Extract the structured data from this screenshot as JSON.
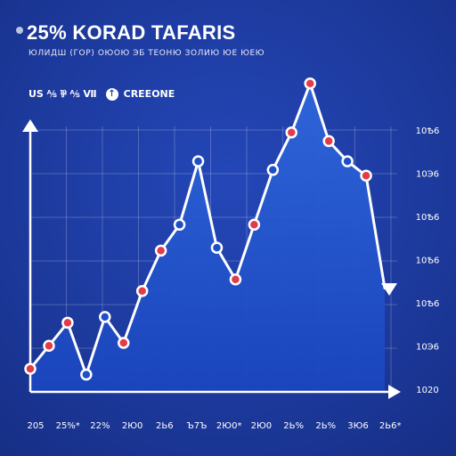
{
  "chart_data": {
    "type": "area",
    "title": "25% KORAD TAFARIS",
    "subtitle": "ЮЛИДШ (ГОР) ОЮОЮ ЭБ ТЕОНЮ ЗОЛИЮ ЮЕ ЮЕЮ",
    "legend": {
      "label_left": "US ⅍ ⅌ ⅍ Ⅶ",
      "label_right": "CREEONE",
      "icon": "up-arrow-icon",
      "placement": "top-left"
    },
    "x_tick_labels": [
      "205",
      "25%*",
      "22%",
      "2Ю0",
      "2Ь6",
      "Ъ7Ъ",
      "2Ю0*",
      "2Ю0",
      "2Ь%",
      "2Ь%",
      "3Ю6",
      "2Ь6*"
    ],
    "y_tick_labels": [
      "1020",
      "10Э6",
      "10Ѣ6",
      "10Ѣ6",
      "10Ѣ6",
      "10Э6",
      "10Ѣ6"
    ],
    "ylim": [
      0,
      100
    ],
    "grid": true,
    "series": [
      {
        "x": [
          0,
          1,
          2,
          3,
          4,
          5,
          6,
          7,
          8,
          9,
          10,
          11,
          12,
          13,
          14,
          15,
          16,
          17,
          18,
          19
        ],
        "values": [
          8,
          16,
          24,
          6,
          26,
          17,
          35,
          49,
          58,
          80,
          50,
          39,
          58,
          77,
          90,
          107,
          87,
          80,
          75,
          36
        ],
        "point_colors": [
          "red",
          "red",
          "red",
          "white",
          "white",
          "red",
          "red",
          "red",
          "white",
          "white",
          "white",
          "red",
          "red",
          "white",
          "red",
          "red",
          "red",
          "white",
          "red",
          "none"
        ]
      }
    ],
    "colors": {
      "area_top": "#2e63d6",
      "area_bottom": "#1d47bd",
      "line": "#ffffff",
      "red_point": "#e23c4a",
      "white_point": "#ffffff"
    }
  }
}
